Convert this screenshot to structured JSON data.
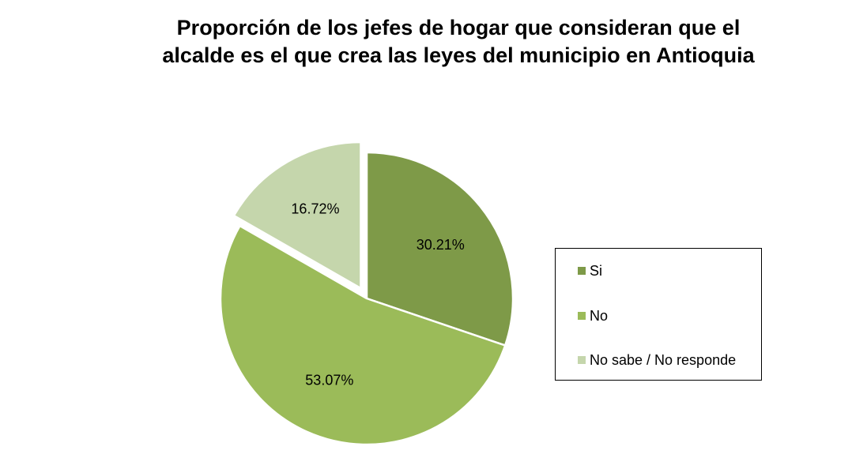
{
  "chart_data": {
    "type": "pie",
    "title_lines": [
      "Proporción de los jefes de hogar  que  consideran  que el",
      "alcalde es el que crea las leyes del municipio en Antioquia"
    ],
    "categories": [
      "Si",
      "No",
      "No sabe / No responde"
    ],
    "values": [
      30.21,
      53.07,
      16.72
    ],
    "value_labels": [
      "30.21%",
      "53.07%",
      "16.72%"
    ],
    "colors": [
      "#7e9a48",
      "#9bbb59",
      "#c5d6ac"
    ],
    "exploded": [
      false,
      false,
      true
    ],
    "legend_position": "right"
  }
}
